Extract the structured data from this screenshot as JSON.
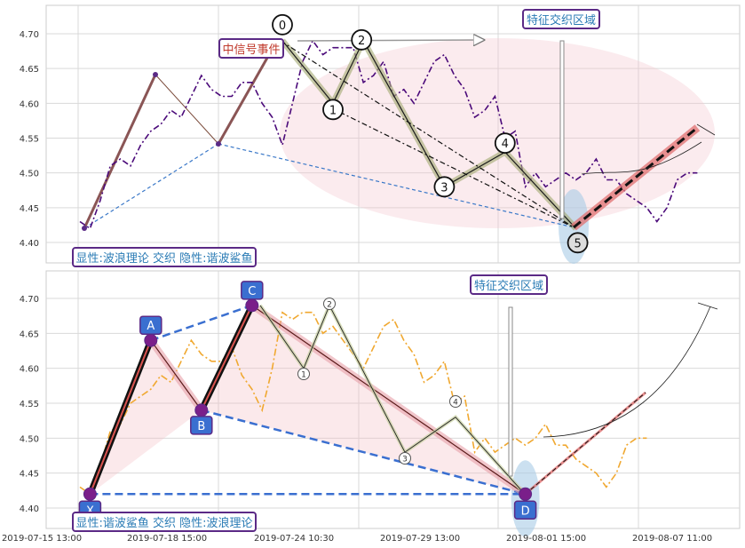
{
  "chart_data": {
    "type": "line",
    "x_tick_labels": [
      "2019-07-15 13:00",
      "2019-07-18 15:00",
      "2019-07-24 10:30",
      "2019-07-29 13:00",
      "2019-08-01 15:00",
      "2019-08-07 11:00"
    ],
    "y_tick_labels": [
      "4.40",
      "4.45",
      "4.50",
      "4.55",
      "4.60",
      "4.65",
      "4.70"
    ],
    "ylim": [
      4.37,
      4.74
    ],
    "grid": true,
    "price_series_top": [
      4.43,
      4.42,
      4.46,
      4.51,
      4.52,
      4.51,
      4.54,
      4.56,
      4.57,
      4.59,
      4.58,
      4.61,
      4.64,
      4.62,
      4.61,
      4.61,
      4.63,
      4.63,
      4.6,
      4.58,
      4.54,
      4.6,
      4.66,
      4.69,
      4.67,
      4.68,
      4.68,
      4.68,
      4.63,
      4.64,
      4.66,
      4.61,
      4.62,
      4.6,
      4.63,
      4.66,
      4.67,
      4.64,
      4.62,
      4.58,
      4.59,
      4.61,
      4.55,
      4.56,
      4.48,
      4.5,
      4.48,
      4.49,
      4.5,
      4.49,
      4.5,
      4.52,
      4.49,
      4.49,
      4.47,
      4.46,
      4.45,
      4.43,
      4.45,
      4.49,
      4.5,
      4.5
    ],
    "price_series_bottom": [
      4.43,
      4.42,
      4.46,
      4.51,
      4.52,
      4.55,
      4.56,
      4.57,
      4.59,
      4.58,
      4.61,
      4.64,
      4.62,
      4.61,
      4.61,
      4.63,
      4.59,
      4.57,
      4.54,
      4.6,
      4.68,
      4.67,
      4.68,
      4.68,
      4.65,
      4.66,
      4.64,
      4.62,
      4.6,
      4.63,
      4.66,
      4.67,
      4.64,
      4.62,
      4.58,
      4.59,
      4.61,
      4.55,
      4.56,
      4.48,
      4.5,
      4.48,
      4.49,
      4.5,
      4.49,
      4.5,
      4.52,
      4.49,
      4.49,
      4.47,
      4.46,
      4.45,
      4.43,
      4.45,
      4.49,
      4.5,
      4.5
    ],
    "wave_points": [
      {
        "label": "0",
        "x": 20,
        "y": 4.69
      },
      {
        "label": "1",
        "x": 25,
        "y": 4.6
      },
      {
        "label": "2",
        "x": 28,
        "y": 4.69
      },
      {
        "label": "3",
        "x": 36,
        "y": 4.48
      },
      {
        "label": "4",
        "x": 42,
        "y": 4.53
      },
      {
        "label": "5",
        "x": 49,
        "y": 4.42
      }
    ],
    "harmonic_points": [
      {
        "label": "X",
        "x": 1,
        "y": 4.42
      },
      {
        "label": "A",
        "x": 7,
        "y": 4.64
      },
      {
        "label": "B",
        "x": 12,
        "y": 4.54
      },
      {
        "label": "C",
        "x": 17,
        "y": 4.69
      },
      {
        "label": "D",
        "x": 44,
        "y": 4.42
      }
    ],
    "projection_end": {
      "x": 61,
      "y": 4.565
    },
    "annotations": {
      "mid_signal": "中信号事件",
      "feature_zone": "特征交织区域",
      "top_caption": "显性:波浪理论 交织 隐性:谐波鲨鱼",
      "bottom_caption": "显性:谐波鲨鱼 交织 隐性:波浪理论"
    }
  }
}
